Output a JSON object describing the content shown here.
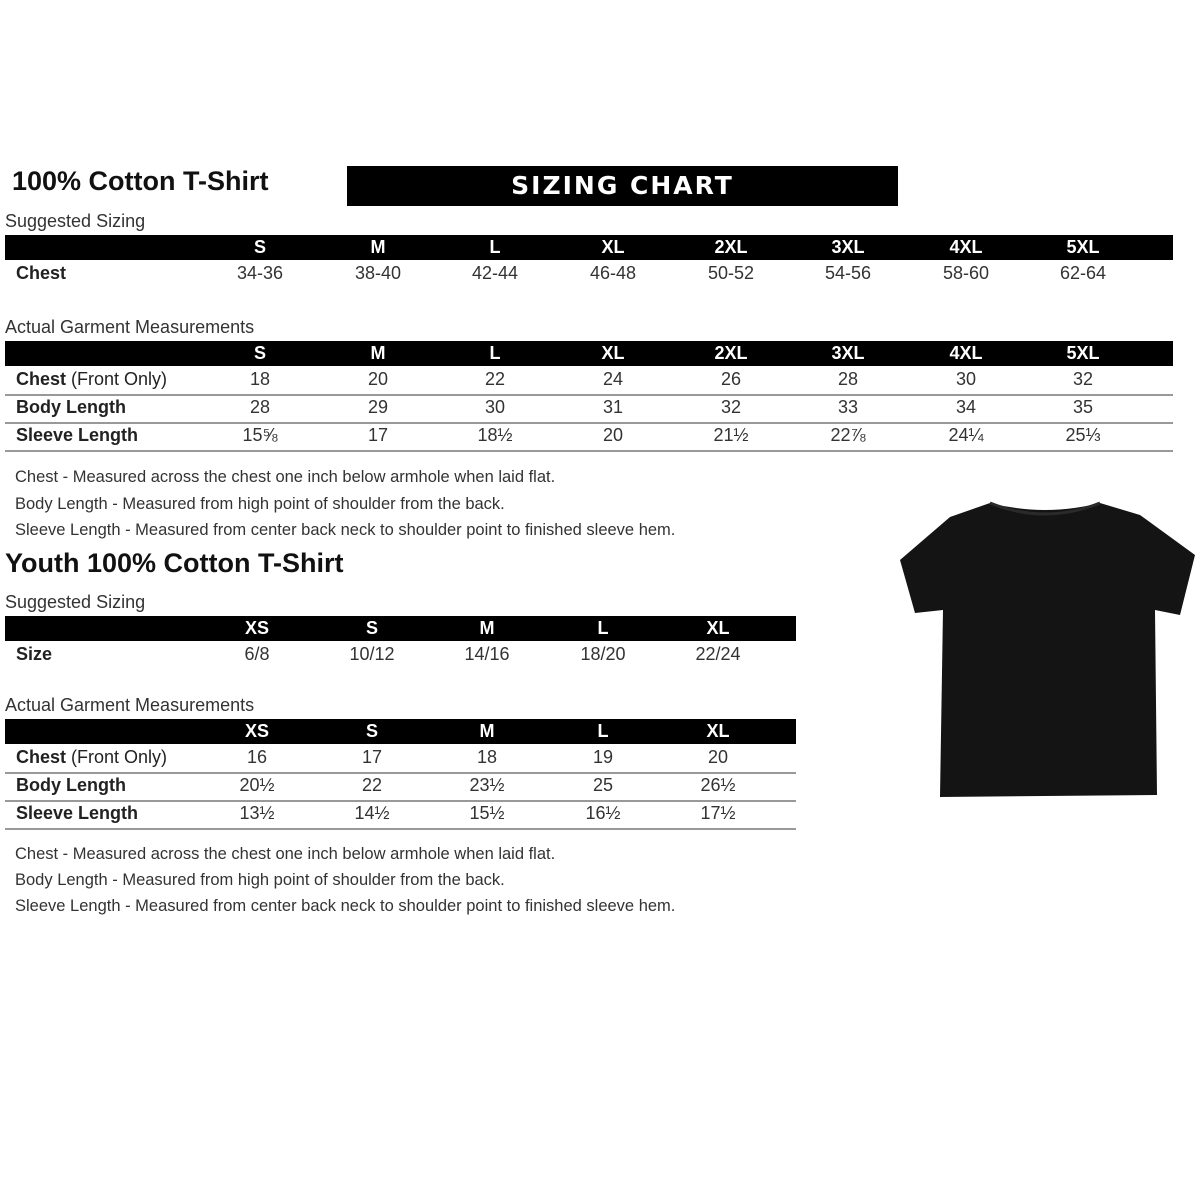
{
  "adult": {
    "title": "100% Cotton T-Shirt",
    "banner": "SIZING CHART",
    "suggested_label": "Suggested Sizing",
    "sizes": [
      "S",
      "M",
      "L",
      "XL",
      "2XL",
      "3XL",
      "4XL",
      "5XL"
    ],
    "suggested_rows": [
      {
        "label": "Chest",
        "values": [
          "34-36",
          "38-40",
          "42-44",
          "46-48",
          "50-52",
          "54-56",
          "58-60",
          "62-64"
        ]
      }
    ],
    "actual_label": "Actual Garment Measurements",
    "actual_rows": [
      {
        "label": "Chest",
        "label_suffix": " (Front Only)",
        "values": [
          "18",
          "20",
          "22",
          "24",
          "26",
          "28",
          "30",
          "32"
        ]
      },
      {
        "label": "Body Length",
        "label_suffix": "",
        "values": [
          "28",
          "29",
          "30",
          "31",
          "32",
          "33",
          "34",
          "35"
        ]
      },
      {
        "label": "Sleeve Length",
        "label_suffix": "",
        "values": [
          "15⅝",
          "17",
          "18½",
          "20",
          "21½",
          "22⅞",
          "24¼",
          "25⅓"
        ]
      }
    ],
    "notes": [
      "Chest - Measured across the chest one inch below armhole when laid flat.",
      "Body Length - Measured from high point of shoulder from the back.",
      "Sleeve Length - Measured from center back neck to shoulder point to finished sleeve hem."
    ]
  },
  "youth": {
    "title": "Youth 100% Cotton T-Shirt",
    "suggested_label": "Suggested Sizing",
    "sizes": [
      "XS",
      "S",
      "M",
      "L",
      "XL"
    ],
    "suggested_rows": [
      {
        "label": "Size",
        "values": [
          "6/8",
          "10/12",
          "14/16",
          "18/20",
          "22/24"
        ]
      }
    ],
    "actual_label": "Actual Garment Measurements",
    "actual_rows": [
      {
        "label": "Chest",
        "label_suffix": " (Front Only)",
        "values": [
          "16",
          "17",
          "18",
          "19",
          "20"
        ]
      },
      {
        "label": "Body Length",
        "label_suffix": "",
        "values": [
          "20½",
          "22",
          "23½",
          "25",
          "26½"
        ]
      },
      {
        "label": "Sleeve Length",
        "label_suffix": "",
        "values": [
          "13½",
          "14½",
          "15½",
          "16½",
          "17½"
        ]
      }
    ],
    "notes": [
      "Chest - Measured across the chest one inch below armhole when laid flat.",
      "Body Length - Measured from high point of shoulder from the back.",
      "Sleeve Length - Measured from center back neck to shoulder point to finished sleeve hem."
    ]
  },
  "image": {
    "icon": "black-tshirt-icon",
    "color": "#111111"
  }
}
